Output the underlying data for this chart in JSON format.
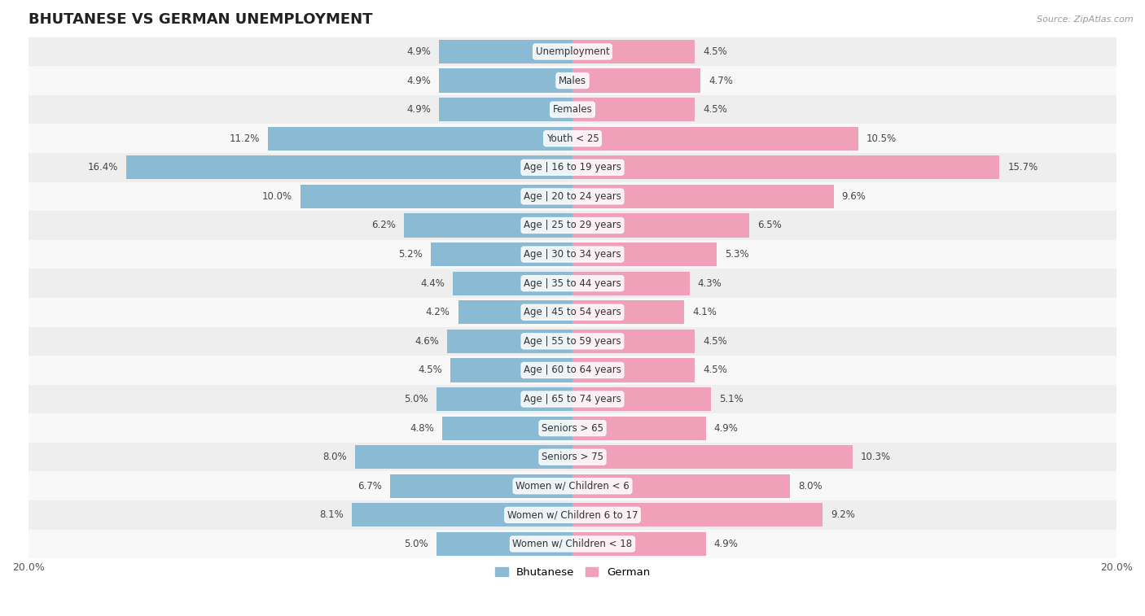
{
  "title": "BHUTANESE VS GERMAN UNEMPLOYMENT",
  "source": "Source: ZipAtlas.com",
  "categories": [
    "Unemployment",
    "Males",
    "Females",
    "Youth < 25",
    "Age | 16 to 19 years",
    "Age | 20 to 24 years",
    "Age | 25 to 29 years",
    "Age | 30 to 34 years",
    "Age | 35 to 44 years",
    "Age | 45 to 54 years",
    "Age | 55 to 59 years",
    "Age | 60 to 64 years",
    "Age | 65 to 74 years",
    "Seniors > 65",
    "Seniors > 75",
    "Women w/ Children < 6",
    "Women w/ Children 6 to 17",
    "Women w/ Children < 18"
  ],
  "bhutanese": [
    4.9,
    4.9,
    4.9,
    11.2,
    16.4,
    10.0,
    6.2,
    5.2,
    4.4,
    4.2,
    4.6,
    4.5,
    5.0,
    4.8,
    8.0,
    6.7,
    8.1,
    5.0
  ],
  "german": [
    4.5,
    4.7,
    4.5,
    10.5,
    15.7,
    9.6,
    6.5,
    5.3,
    4.3,
    4.1,
    4.5,
    4.5,
    5.1,
    4.9,
    10.3,
    8.0,
    9.2,
    4.9
  ],
  "bhutanese_color": "#8bbad4",
  "german_color": "#f0a0b8",
  "row_color_odd": "#eeeeee",
  "row_color_even": "#f8f8f8",
  "max_val": 20.0,
  "label_fontsize": 8.5,
  "category_fontsize": 8.5,
  "title_fontsize": 13,
  "bar_height": 0.82
}
